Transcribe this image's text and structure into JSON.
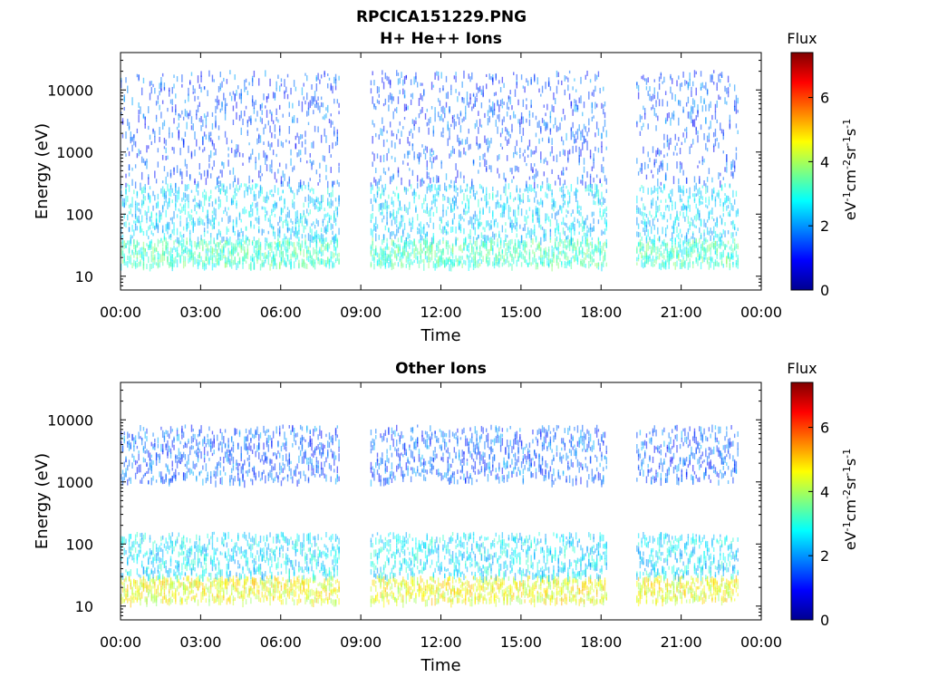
{
  "title_line1": "RPCICA151229.PNG",
  "chart_data": [
    {
      "type": "heatmap",
      "title": "H+ He++ Ions",
      "xlabel": "Time",
      "ylabel": "Energy (eV)",
      "x_ticks": [
        "00:00",
        "03:00",
        "06:00",
        "09:00",
        "12:00",
        "15:00",
        "18:00",
        "21:00",
        "00:00"
      ],
      "x_range_hours": [
        0,
        24
      ],
      "y_scale": "log",
      "y_range": [
        6,
        40000
      ],
      "y_ticks": [
        10,
        100,
        1000,
        10000
      ],
      "y_tick_labels": [
        "10",
        "100",
        "1000",
        "10000"
      ],
      "data_gaps_hours": [
        [
          8.2,
          9.3
        ],
        [
          18.2,
          19.3
        ],
        [
          23.1,
          24.0
        ]
      ],
      "colorbar": {
        "title": "Flux",
        "label": "eV-1cm-2sr-1s-1",
        "range": [
          0,
          7.4
        ],
        "ticks": [
          0,
          2,
          4,
          6
        ],
        "colormap": "jet"
      },
      "bands": [
        {
          "e_min": 15,
          "e_max": 40,
          "flux": 3.2
        },
        {
          "e_min": 40,
          "e_max": 300,
          "flux": 2.5
        },
        {
          "e_min": 300,
          "e_max": 20000,
          "flux": 1.5
        }
      ]
    },
    {
      "type": "heatmap",
      "title": "Other Ions",
      "xlabel": "Time",
      "ylabel": "Energy (eV)",
      "x_ticks": [
        "00:00",
        "03:00",
        "06:00",
        "09:00",
        "12:00",
        "15:00",
        "18:00",
        "21:00",
        "00:00"
      ],
      "x_range_hours": [
        0,
        24
      ],
      "y_scale": "log",
      "y_range": [
        6,
        40000
      ],
      "y_ticks": [
        10,
        100,
        1000,
        10000
      ],
      "y_tick_labels": [
        "10",
        "100",
        "1000",
        "10000"
      ],
      "data_gaps_hours": [
        [
          8.2,
          9.3
        ],
        [
          18.2,
          19.3
        ],
        [
          23.1,
          24.0
        ]
      ],
      "colorbar": {
        "title": "Flux",
        "label": "eV-1cm-2sr-1s-1",
        "range": [
          0,
          7.4
        ],
        "ticks": [
          0,
          2,
          4,
          6
        ],
        "colormap": "jet"
      },
      "bands": [
        {
          "e_min": 12,
          "e_max": 30,
          "flux": 4.5
        },
        {
          "e_min": 30,
          "e_max": 150,
          "flux": 2.6
        },
        {
          "e_min": 1000,
          "e_max": 8000,
          "flux": 1.6
        }
      ]
    }
  ]
}
